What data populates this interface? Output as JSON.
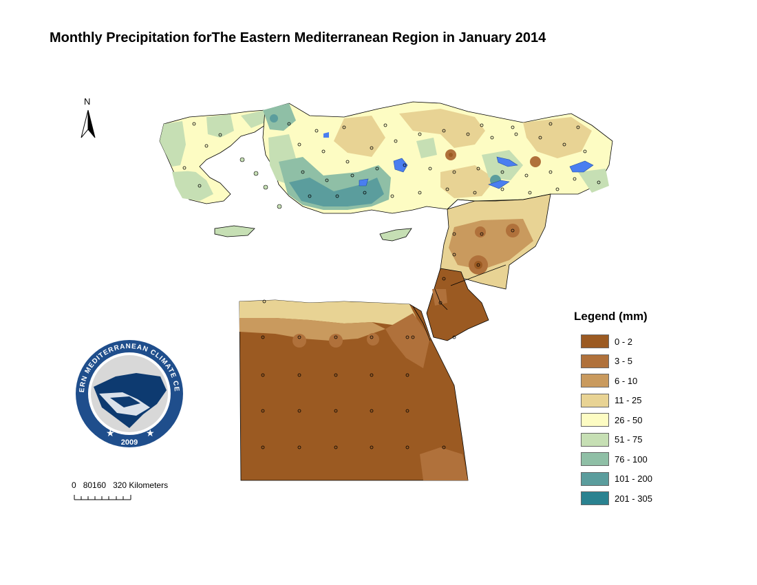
{
  "title": "Monthly Precipitation forThe Eastern Mediterranean Region in January 2014",
  "north_arrow": {
    "label": "N"
  },
  "logo": {
    "ring_text": "EASTERN MEDITERRANEAN CLIMATE CENTRE",
    "year": "2009",
    "colors": {
      "ring": "#1f4e8c",
      "land": "#0d3a70",
      "bg": "#d8d8d8"
    }
  },
  "scale_bar": {
    "ticks": [
      "0",
      "80160",
      "320 Kilometers"
    ]
  },
  "legend": {
    "title": "Legend (mm)",
    "items": [
      {
        "label": "0 - 2",
        "color": "#9b5a22"
      },
      {
        "label": "3 - 5",
        "color": "#b0713b"
      },
      {
        "label": "6 - 10",
        "color": "#c99a5e"
      },
      {
        "label": "11 - 25",
        "color": "#e8d394"
      },
      {
        "label": "26 - 50",
        "color": "#fdfcc3"
      },
      {
        "label": "51 - 75",
        "color": "#c6dfb4"
      },
      {
        "label": "76 - 100",
        "color": "#8fbfa6"
      },
      {
        "label": "101 - 200",
        "color": "#5b9d9d"
      },
      {
        "label": "201 - 305",
        "color": "#2a8290"
      }
    ]
  }
}
